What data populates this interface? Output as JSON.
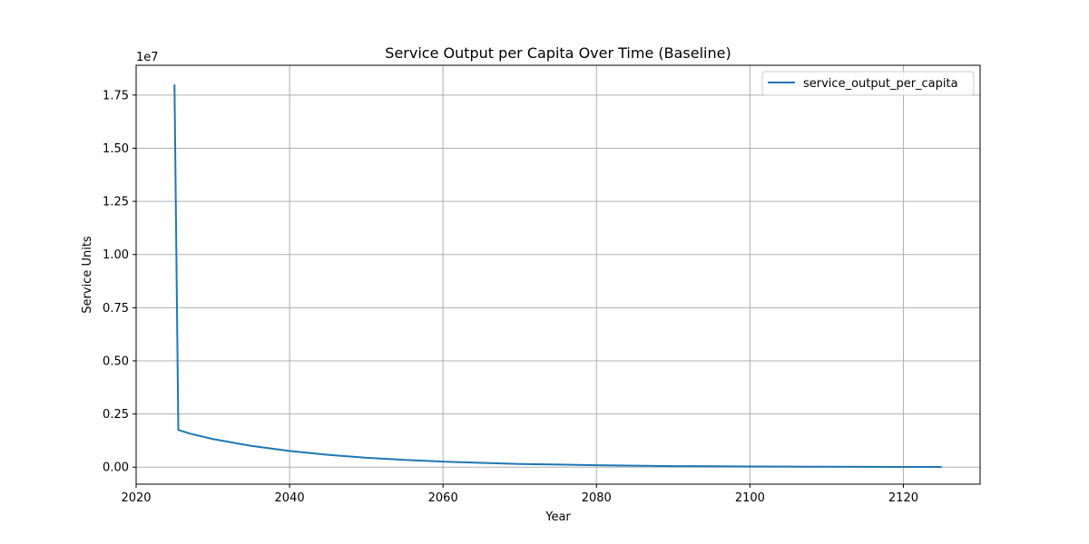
{
  "chart_data": {
    "type": "line",
    "title": "Service Output per Capita Over Time (Baseline)",
    "xlabel": "Year",
    "ylabel": "Service Units",
    "y_offset_label": "1e7",
    "xlim": [
      2020,
      2130
    ],
    "ylim": [
      -0.08,
      1.89
    ],
    "y_scale_note": "values in units of 1e7",
    "x_ticks": [
      2020,
      2040,
      2060,
      2080,
      2100,
      2120
    ],
    "x_tick_labels": [
      "2020",
      "2040",
      "2060",
      "2080",
      "2100",
      "2120"
    ],
    "y_ticks": [
      0,
      0.25,
      0.5,
      0.75,
      1.0,
      1.25,
      1.5,
      1.75
    ],
    "y_tick_labels": [
      "0.00",
      "0.25",
      "0.50",
      "0.75",
      "1.00",
      "1.25",
      "1.50",
      "1.75"
    ],
    "grid": true,
    "legend_position": "top-right",
    "series": [
      {
        "name": "service_output_per_capita",
        "color": "#1f77b4",
        "x": [
          2025,
          2025.5,
          2027,
          2030,
          2035,
          2040,
          2045,
          2050,
          2055,
          2060,
          2065,
          2070,
          2075,
          2080,
          2085,
          2090,
          2095,
          2100,
          2105,
          2110,
          2115,
          2120,
          2125
        ],
        "y": [
          1.8,
          0.175,
          0.158,
          0.132,
          0.1,
          0.076,
          0.058,
          0.044,
          0.034,
          0.026,
          0.02,
          0.015,
          0.012,
          0.009,
          0.007,
          0.005,
          0.004,
          0.003,
          0.0025,
          0.002,
          0.0015,
          0.0012,
          0.001
        ]
      }
    ]
  }
}
